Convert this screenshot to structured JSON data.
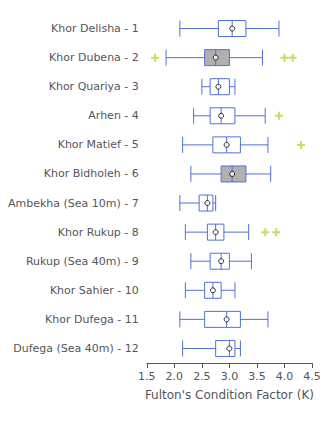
{
  "chart_data": {
    "type": "boxplot",
    "orientation": "horizontal",
    "xlabel": "Fulton's Condition Factor (K)",
    "categories": [
      "Khor Delisha - 1",
      "Khor Dubena - 2",
      "Khor Quariya - 3",
      "Arhen - 4",
      "Khor Matief - 5",
      "Khor Bidholeh - 6",
      "Ambekha (Sea 10m) - 7",
      "Khor Rukup - 8",
      "Rukup (Sea 40m) - 9",
      "Khor Sahier - 10",
      "Khor Dufega - 11",
      "Dufega (Sea 40m) - 12"
    ],
    "boxes": [
      [
        2.1,
        2.8,
        3.05,
        3.3,
        3.9
      ],
      [
        1.85,
        2.55,
        2.75,
        3.0,
        3.6
      ],
      [
        2.5,
        2.65,
        2.8,
        3.0,
        3.1
      ],
      [
        2.35,
        2.65,
        2.85,
        3.1,
        3.65
      ],
      [
        2.15,
        2.7,
        2.95,
        3.2,
        3.7
      ],
      [
        2.3,
        2.85,
        3.05,
        3.3,
        3.75
      ],
      [
        2.1,
        2.45,
        2.6,
        2.7,
        2.75
      ],
      [
        2.2,
        2.6,
        2.75,
        2.9,
        3.35
      ],
      [
        2.3,
        2.65,
        2.85,
        3.0,
        3.4
      ],
      [
        2.2,
        2.55,
        2.7,
        2.85,
        3.1
      ],
      [
        2.1,
        2.55,
        2.95,
        3.2,
        3.7
      ],
      [
        2.15,
        2.75,
        3.0,
        3.1,
        3.2
      ]
    ],
    "means": [
      3.05,
      2.75,
      2.8,
      2.85,
      2.95,
      3.05,
      2.6,
      2.75,
      2.85,
      2.7,
      2.95,
      3.0
    ],
    "fliers": [
      [],
      [
        1.65,
        4.0,
        4.15
      ],
      [],
      [
        3.9
      ],
      [
        4.3
      ],
      [],
      [],
      [
        3.65,
        3.85
      ],
      [],
      [],
      [],
      []
    ],
    "colors": [
      "white",
      "#b0b0b0",
      "white",
      "white",
      "white",
      "#b0b0b0",
      "white",
      "white",
      "white",
      "white",
      "white",
      "white"
    ],
    "marker": "+",
    "xlim": [
      1.5,
      4.5
    ],
    "xticks": [
      1.5,
      {
        "value": 2.0,
        "label": "2.0"
      },
      2.5,
      {
        "value": 3.0,
        "label": "3.0"
      },
      3.5,
      {
        "value": 4.0,
        "label": "4.0"
      },
      4.5
    ],
    "grid": false
  }
}
